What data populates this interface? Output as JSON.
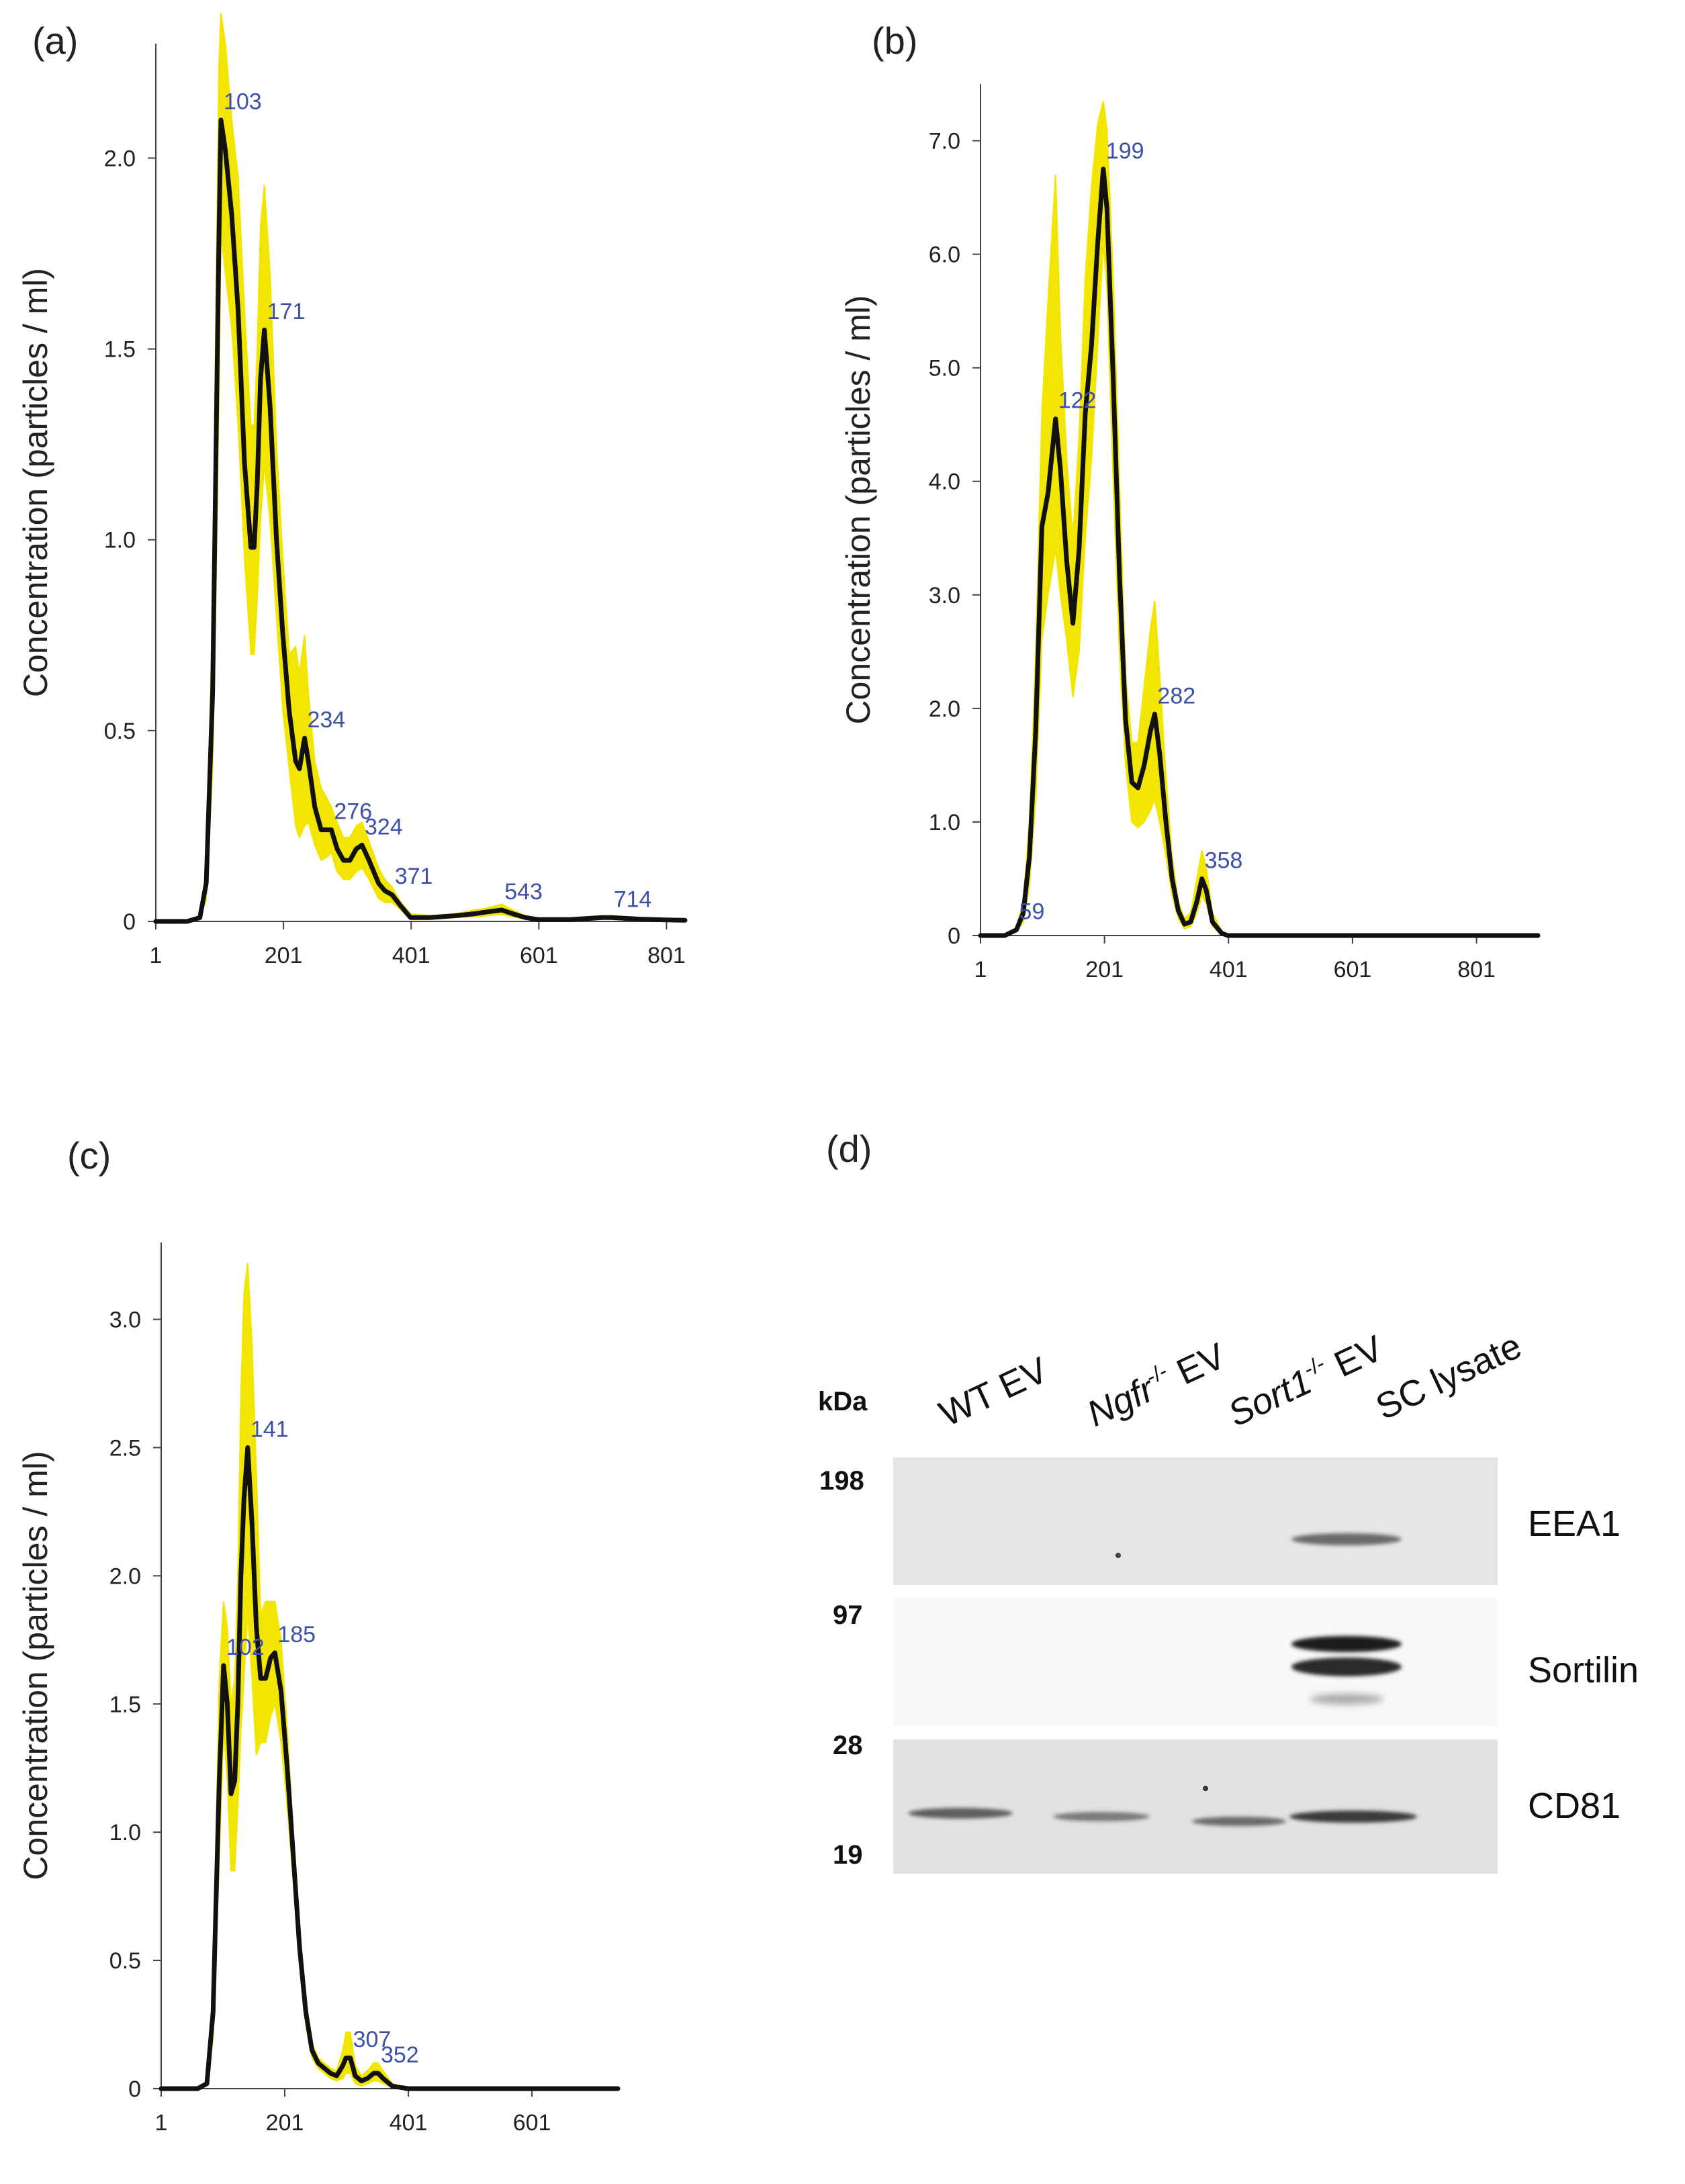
{
  "chart_data": [
    {
      "type": "line",
      "panel_label": "(a)",
      "ylabel": "Concentration (particles / ml)",
      "xlabel": "",
      "xlim": [
        1,
        830
      ],
      "ylim": [
        0,
        2.3
      ],
      "x_ticks": [
        1,
        201,
        401,
        601,
        801
      ],
      "y_ticks": [
        "0",
        "0.5",
        "1.0",
        "1.5",
        "2.0"
      ],
      "y_tick_values": [
        0,
        0.5,
        1.0,
        1.5,
        2.0
      ],
      "series": [
        {
          "name": "mean",
          "x": [
            1,
            50,
            70,
            80,
            90,
            95,
            100,
            103,
            110,
            120,
            130,
            140,
            150,
            155,
            160,
            165,
            171,
            180,
            190,
            200,
            210,
            220,
            226,
            234,
            240,
            250,
            260,
            270,
            276,
            285,
            295,
            305,
            315,
            324,
            335,
            350,
            360,
            371,
            385,
            400,
            430,
            470,
            500,
            520,
            543,
            560,
            580,
            600,
            650,
            700,
            714,
            760,
            800,
            830
          ],
          "y": [
            0,
            0,
            0.01,
            0.1,
            0.6,
            1.2,
            1.8,
            2.1,
            2.02,
            1.85,
            1.6,
            1.2,
            0.98,
            0.98,
            1.15,
            1.42,
            1.55,
            1.35,
            1.0,
            0.75,
            0.55,
            0.42,
            0.4,
            0.48,
            0.42,
            0.3,
            0.24,
            0.24,
            0.24,
            0.19,
            0.16,
            0.16,
            0.19,
            0.2,
            0.16,
            0.1,
            0.08,
            0.07,
            0.04,
            0.01,
            0.01,
            0.015,
            0.02,
            0.025,
            0.03,
            0.02,
            0.01,
            0.005,
            0.005,
            0.01,
            0.01,
            0.006,
            0.004,
            0.003
          ]
        },
        {
          "name": "upper",
          "x": [
            1,
            50,
            70,
            80,
            90,
            95,
            100,
            103,
            110,
            120,
            130,
            140,
            150,
            155,
            160,
            165,
            171,
            180,
            190,
            200,
            210,
            220,
            226,
            234,
            240,
            250,
            260,
            270,
            276,
            285,
            295,
            305,
            315,
            324,
            335,
            350,
            360,
            371,
            385,
            400,
            430,
            470,
            500,
            520,
            543,
            560,
            580,
            600,
            650,
            700,
            714,
            760,
            800,
            830
          ],
          "y": [
            0,
            0,
            0.015,
            0.14,
            0.8,
            1.6,
            2.25,
            2.38,
            2.3,
            2.1,
            1.95,
            1.6,
            1.3,
            1.3,
            1.5,
            1.82,
            1.93,
            1.7,
            1.25,
            0.95,
            0.7,
            0.72,
            0.65,
            0.75,
            0.6,
            0.42,
            0.35,
            0.32,
            0.3,
            0.26,
            0.22,
            0.22,
            0.25,
            0.26,
            0.21,
            0.14,
            0.11,
            0.09,
            0.05,
            0.02,
            0.015,
            0.02,
            0.03,
            0.035,
            0.045,
            0.03,
            0.015,
            0.008,
            0.008,
            0.015,
            0.015,
            0.009,
            0.006,
            0.004
          ]
        },
        {
          "name": "lower",
          "x": [
            1,
            50,
            70,
            80,
            90,
            95,
            100,
            103,
            110,
            120,
            130,
            140,
            150,
            155,
            160,
            165,
            171,
            180,
            190,
            200,
            210,
            220,
            226,
            234,
            240,
            250,
            260,
            270,
            276,
            285,
            295,
            305,
            315,
            324,
            335,
            350,
            360,
            371,
            385,
            400,
            430,
            470,
            500,
            520,
            543,
            560,
            580,
            600,
            650,
            700,
            714,
            760,
            800,
            830
          ],
          "y": [
            0,
            0,
            0.005,
            0.06,
            0.4,
            0.85,
            1.4,
            1.8,
            1.7,
            1.55,
            1.3,
            0.95,
            0.7,
            0.7,
            0.85,
            1.05,
            1.2,
            1.05,
            0.8,
            0.55,
            0.4,
            0.25,
            0.22,
            0.25,
            0.26,
            0.2,
            0.16,
            0.17,
            0.18,
            0.13,
            0.11,
            0.11,
            0.13,
            0.14,
            0.11,
            0.06,
            0.05,
            0.05,
            0.03,
            0.005,
            0.005,
            0.01,
            0.012,
            0.015,
            0.018,
            0.012,
            0.006,
            0.003,
            0.003,
            0.006,
            0.006,
            0.004,
            0.002,
            0.002
          ]
        }
      ],
      "peak_labels": [
        {
          "x": 103,
          "y": 2.1,
          "label": "103"
        },
        {
          "x": 171,
          "y": 1.55,
          "label": "171"
        },
        {
          "x": 234,
          "y": 0.48,
          "label": "234"
        },
        {
          "x": 276,
          "y": 0.24,
          "label": "276"
        },
        {
          "x": 324,
          "y": 0.2,
          "label": "324"
        },
        {
          "x": 371,
          "y": 0.07,
          "label": "371"
        },
        {
          "x": 543,
          "y": 0.03,
          "label": "543"
        },
        {
          "x": 714,
          "y": 0.01,
          "label": "714"
        }
      ],
      "colors": {
        "band": "#f2e600",
        "line": "#111111",
        "peak_label": "#3d50a8"
      }
    },
    {
      "type": "line",
      "panel_label": "(b)",
      "ylabel": "Concentration (particles / ml)",
      "xlabel": "",
      "xlim": [
        1,
        900
      ],
      "ylim": [
        0,
        7.5
      ],
      "x_ticks": [
        1,
        201,
        401,
        601,
        801
      ],
      "y_ticks": [
        "0",
        "1.0",
        "2.0",
        "3.0",
        "4.0",
        "5.0",
        "6.0",
        "7.0"
      ],
      "y_tick_values": [
        0,
        1,
        2,
        3,
        4,
        5,
        6,
        7
      ],
      "series": [
        {
          "name": "mean",
          "x": [
            1,
            40,
            59,
            70,
            80,
            90,
            100,
            110,
            122,
            130,
            140,
            150,
            160,
            170,
            180,
            190,
            199,
            205,
            215,
            225,
            235,
            245,
            255,
            265,
            275,
            282,
            290,
            300,
            310,
            320,
            330,
            340,
            350,
            358,
            365,
            375,
            390,
            400,
            450,
            600,
            800,
            900
          ],
          "y": [
            0,
            0,
            0.05,
            0.2,
            0.7,
            1.8,
            3.6,
            3.9,
            4.55,
            4.1,
            3.3,
            2.75,
            3.4,
            4.6,
            5.2,
            6.1,
            6.75,
            6.4,
            4.9,
            3.2,
            1.9,
            1.35,
            1.3,
            1.5,
            1.8,
            1.95,
            1.6,
            1.0,
            0.5,
            0.22,
            0.1,
            0.12,
            0.3,
            0.5,
            0.4,
            0.12,
            0.02,
            0.0,
            0,
            0,
            0,
            0
          ]
        },
        {
          "name": "upper",
          "x": [
            1,
            40,
            59,
            70,
            80,
            90,
            100,
            110,
            122,
            130,
            140,
            150,
            160,
            170,
            180,
            190,
            199,
            205,
            215,
            225,
            235,
            245,
            255,
            265,
            275,
            282,
            290,
            300,
            310,
            320,
            330,
            340,
            350,
            358,
            365,
            375,
            390,
            400,
            450,
            600,
            800,
            900
          ],
          "y": [
            0,
            0,
            0.07,
            0.3,
            1.0,
            2.5,
            4.6,
            5.6,
            6.7,
            5.3,
            4.2,
            3.5,
            4.4,
            5.8,
            6.6,
            7.15,
            7.35,
            7.1,
            5.8,
            4.0,
            2.3,
            1.7,
            1.7,
            2.2,
            2.7,
            2.95,
            2.3,
            1.4,
            0.7,
            0.3,
            0.15,
            0.2,
            0.5,
            0.75,
            0.6,
            0.2,
            0.04,
            0.0,
            0,
            0,
            0,
            0
          ]
        },
        {
          "name": "lower",
          "x": [
            1,
            40,
            59,
            70,
            80,
            90,
            100,
            110,
            122,
            130,
            140,
            150,
            160,
            170,
            180,
            190,
            199,
            205,
            215,
            225,
            235,
            245,
            255,
            265,
            275,
            282,
            290,
            300,
            310,
            320,
            330,
            340,
            350,
            358,
            365,
            375,
            390,
            400,
            450,
            600,
            800,
            900
          ],
          "y": [
            0,
            0,
            0.03,
            0.12,
            0.45,
            1.2,
            2.6,
            3.0,
            3.4,
            3.0,
            2.6,
            2.1,
            2.5,
            3.5,
            4.2,
            5.2,
            6.1,
            5.7,
            4.0,
            2.5,
            1.5,
            1.0,
            0.95,
            1.0,
            1.1,
            1.2,
            1.0,
            0.7,
            0.35,
            0.15,
            0.06,
            0.08,
            0.2,
            0.35,
            0.28,
            0.08,
            0.01,
            0.0,
            0,
            0,
            0,
            0
          ]
        }
      ],
      "peak_labels": [
        {
          "x": 59,
          "y": 0.05,
          "label": "59"
        },
        {
          "x": 122,
          "y": 4.55,
          "label": "122"
        },
        {
          "x": 199,
          "y": 6.75,
          "label": "199"
        },
        {
          "x": 282,
          "y": 1.95,
          "label": "282"
        },
        {
          "x": 358,
          "y": 0.5,
          "label": "358"
        }
      ],
      "colors": {
        "band": "#f2e600",
        "line": "#111111",
        "peak_label": "#3d50a8"
      }
    },
    {
      "type": "line",
      "panel_label": "(c)",
      "ylabel": "Concentration (particles / ml)",
      "xlabel": "",
      "xlim": [
        1,
        740
      ],
      "ylim": [
        0,
        3.3
      ],
      "x_ticks": [
        1,
        201,
        401,
        601
      ],
      "y_ticks": [
        "0",
        "0.5",
        "1.0",
        "1.5",
        "2.0",
        "2.5",
        "3.0"
      ],
      "y_tick_values": [
        0,
        0.5,
        1.0,
        1.5,
        2.0,
        2.5,
        3.0
      ],
      "series": [
        {
          "name": "mean",
          "x": [
            1,
            60,
            75,
            85,
            95,
            102,
            108,
            114,
            120,
            125,
            130,
            135,
            141,
            148,
            155,
            162,
            170,
            178,
            185,
            195,
            205,
            215,
            225,
            235,
            245,
            255,
            265,
            275,
            285,
            295,
            300,
            307,
            315,
            325,
            335,
            345,
            352,
            360,
            375,
            400,
            500,
            740
          ],
          "y": [
            0,
            0,
            0.02,
            0.3,
            1.2,
            1.65,
            1.5,
            1.15,
            1.2,
            1.5,
            2.0,
            2.3,
            2.5,
            2.2,
            1.8,
            1.6,
            1.6,
            1.68,
            1.7,
            1.55,
            1.25,
            0.9,
            0.55,
            0.3,
            0.15,
            0.1,
            0.08,
            0.06,
            0.05,
            0.09,
            0.12,
            0.12,
            0.05,
            0.03,
            0.04,
            0.06,
            0.06,
            0.04,
            0.01,
            0.0,
            0,
            0
          ]
        },
        {
          "name": "upper",
          "x": [
            1,
            60,
            75,
            85,
            95,
            102,
            108,
            114,
            120,
            125,
            130,
            135,
            141,
            148,
            155,
            162,
            170,
            178,
            185,
            195,
            205,
            215,
            225,
            235,
            245,
            255,
            265,
            275,
            285,
            295,
            300,
            307,
            315,
            325,
            335,
            345,
            352,
            360,
            375,
            400,
            500,
            740
          ],
          "y": [
            0,
            0,
            0.03,
            0.4,
            1.6,
            1.9,
            1.8,
            1.5,
            1.6,
            2.0,
            2.7,
            3.1,
            3.22,
            2.9,
            2.4,
            1.85,
            1.9,
            1.9,
            1.9,
            1.75,
            1.4,
            1.0,
            0.62,
            0.35,
            0.18,
            0.12,
            0.1,
            0.08,
            0.07,
            0.15,
            0.22,
            0.22,
            0.09,
            0.05,
            0.07,
            0.1,
            0.1,
            0.07,
            0.02,
            0.0,
            0,
            0
          ]
        },
        {
          "name": "lower",
          "x": [
            1,
            60,
            75,
            85,
            95,
            102,
            108,
            114,
            120,
            125,
            130,
            135,
            141,
            148,
            155,
            162,
            170,
            178,
            185,
            195,
            205,
            215,
            225,
            235,
            245,
            255,
            265,
            275,
            285,
            295,
            300,
            307,
            315,
            325,
            335,
            345,
            352,
            360,
            375,
            400,
            500,
            740
          ],
          "y": [
            0,
            0,
            0.01,
            0.2,
            0.9,
            1.4,
            1.2,
            0.85,
            0.85,
            1.1,
            1.4,
            1.6,
            1.85,
            1.6,
            1.3,
            1.35,
            1.35,
            1.45,
            1.5,
            1.35,
            1.1,
            0.8,
            0.48,
            0.25,
            0.12,
            0.08,
            0.06,
            0.04,
            0.03,
            0.04,
            0.06,
            0.06,
            0.02,
            0.01,
            0.02,
            0.03,
            0.03,
            0.02,
            0.005,
            0.0,
            0,
            0
          ]
        }
      ],
      "peak_labels": [
        {
          "x": 102,
          "y": 1.65,
          "label": "102"
        },
        {
          "x": 141,
          "y": 2.5,
          "label": "141"
        },
        {
          "x": 185,
          "y": 1.7,
          "label": "185"
        },
        {
          "x": 307,
          "y": 0.12,
          "label": "307"
        },
        {
          "x": 352,
          "y": 0.06,
          "label": "352"
        }
      ],
      "colors": {
        "band": "#f2e600",
        "line": "#111111",
        "peak_label": "#3d50a8"
      }
    }
  ],
  "western_blot": {
    "panel_label": "(d)",
    "kda_label": "kDa",
    "lanes": [
      {
        "label": "WT EV",
        "italic": "",
        "sup": "",
        "suffix": "WT EV"
      },
      {
        "label": "Ngfr-/- EV",
        "italic": "Ngfr",
        "sup": "-/-",
        "suffix": " EV"
      },
      {
        "label": "Sort1-/- EV",
        "italic": "Sort1",
        "sup": "-/-",
        "suffix": " EV"
      },
      {
        "label": "SC lysate",
        "italic": "",
        "sup": "",
        "suffix": "SC lysate"
      }
    ],
    "markers": [
      "198",
      "97",
      "28",
      "19"
    ],
    "proteins": [
      "EEA1",
      "Sortilin",
      "CD81"
    ]
  }
}
